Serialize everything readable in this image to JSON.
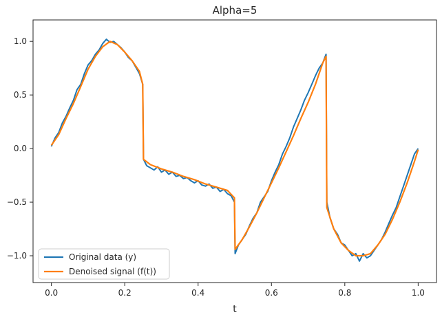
{
  "chart_data": {
    "type": "line",
    "title": "Alpha=5",
    "xlabel": "t",
    "ylabel": "",
    "xlim": [
      -0.05,
      1.05
    ],
    "ylim": [
      -1.25,
      1.2
    ],
    "xticks": [
      0.0,
      0.2,
      0.4,
      0.6,
      0.8,
      1.0
    ],
    "xtick_labels": [
      "0.0",
      "0.2",
      "0.4",
      "0.6",
      "0.8",
      "1.0"
    ],
    "yticks": [
      1.0,
      0.5,
      0.0,
      -0.5,
      -1.0
    ],
    "ytick_labels": [
      "1.0",
      "0.5",
      "0.0",
      "−0.5",
      "−1.0"
    ],
    "grid": false,
    "legend_position": "lower-left",
    "series": [
      {
        "name": "Original data (y)",
        "color": "#1f77b4",
        "x": [
          0.0,
          0.01,
          0.02,
          0.03,
          0.04,
          0.05,
          0.06,
          0.07,
          0.08,
          0.09,
          0.1,
          0.11,
          0.12,
          0.13,
          0.14,
          0.15,
          0.16,
          0.17,
          0.18,
          0.19,
          0.2,
          0.21,
          0.22,
          0.23,
          0.24,
          0.249,
          0.251,
          0.26,
          0.27,
          0.28,
          0.29,
          0.3,
          0.31,
          0.32,
          0.33,
          0.34,
          0.35,
          0.36,
          0.37,
          0.38,
          0.39,
          0.4,
          0.41,
          0.42,
          0.43,
          0.44,
          0.45,
          0.46,
          0.47,
          0.48,
          0.49,
          0.499,
          0.501,
          0.51,
          0.52,
          0.53,
          0.54,
          0.55,
          0.56,
          0.57,
          0.58,
          0.59,
          0.6,
          0.61,
          0.62,
          0.63,
          0.64,
          0.65,
          0.66,
          0.67,
          0.68,
          0.69,
          0.7,
          0.71,
          0.72,
          0.73,
          0.74,
          0.749,
          0.751,
          0.76,
          0.77,
          0.78,
          0.79,
          0.8,
          0.81,
          0.82,
          0.83,
          0.84,
          0.85,
          0.86,
          0.87,
          0.88,
          0.89,
          0.9,
          0.91,
          0.92,
          0.93,
          0.94,
          0.95,
          0.96,
          0.97,
          0.98,
          0.99,
          1.0
        ],
        "values": [
          0.02,
          0.1,
          0.15,
          0.24,
          0.3,
          0.38,
          0.45,
          0.55,
          0.6,
          0.7,
          0.78,
          0.82,
          0.88,
          0.92,
          0.98,
          1.02,
          0.99,
          1.0,
          0.97,
          0.94,
          0.9,
          0.85,
          0.82,
          0.76,
          0.7,
          0.6,
          -0.1,
          -0.16,
          -0.18,
          -0.2,
          -0.17,
          -0.22,
          -0.2,
          -0.24,
          -0.22,
          -0.26,
          -0.25,
          -0.28,
          -0.27,
          -0.3,
          -0.32,
          -0.3,
          -0.34,
          -0.35,
          -0.33,
          -0.37,
          -0.36,
          -0.4,
          -0.38,
          -0.42,
          -0.44,
          -0.5,
          -0.98,
          -0.9,
          -0.85,
          -0.8,
          -0.72,
          -0.65,
          -0.6,
          -0.5,
          -0.45,
          -0.4,
          -0.3,
          -0.22,
          -0.15,
          -0.05,
          0.02,
          0.1,
          0.2,
          0.28,
          0.36,
          0.45,
          0.52,
          0.6,
          0.68,
          0.75,
          0.8,
          0.88,
          -0.5,
          -0.65,
          -0.75,
          -0.8,
          -0.88,
          -0.9,
          -0.95,
          -1.0,
          -0.98,
          -1.05,
          -0.98,
          -1.02,
          -1.0,
          -0.95,
          -0.9,
          -0.85,
          -0.78,
          -0.7,
          -0.62,
          -0.55,
          -0.45,
          -0.35,
          -0.25,
          -0.15,
          -0.05,
          0.0
        ]
      },
      {
        "name": "Denoised signal (f(t))",
        "color": "#ff7f0e",
        "x": [
          0.0,
          0.02,
          0.04,
          0.06,
          0.08,
          0.1,
          0.12,
          0.14,
          0.16,
          0.18,
          0.2,
          0.22,
          0.24,
          0.249,
          0.251,
          0.27,
          0.3,
          0.33,
          0.36,
          0.39,
          0.42,
          0.45,
          0.48,
          0.499,
          0.501,
          0.52,
          0.54,
          0.56,
          0.58,
          0.6,
          0.62,
          0.64,
          0.66,
          0.68,
          0.7,
          0.72,
          0.74,
          0.749,
          0.751,
          0.77,
          0.79,
          0.81,
          0.83,
          0.85,
          0.87,
          0.89,
          0.91,
          0.93,
          0.95,
          0.97,
          0.99,
          1.0
        ],
        "values": [
          0.03,
          0.13,
          0.28,
          0.42,
          0.58,
          0.74,
          0.86,
          0.95,
          1.0,
          0.97,
          0.9,
          0.82,
          0.72,
          0.6,
          -0.1,
          -0.15,
          -0.19,
          -0.22,
          -0.26,
          -0.29,
          -0.33,
          -0.36,
          -0.39,
          -0.46,
          -0.94,
          -0.85,
          -0.73,
          -0.6,
          -0.46,
          -0.32,
          -0.18,
          -0.03,
          0.12,
          0.28,
          0.43,
          0.6,
          0.8,
          0.86,
          -0.55,
          -0.75,
          -0.88,
          -0.95,
          -1.0,
          -1.0,
          -0.98,
          -0.9,
          -0.8,
          -0.66,
          -0.5,
          -0.32,
          -0.12,
          -0.01
        ]
      }
    ]
  }
}
